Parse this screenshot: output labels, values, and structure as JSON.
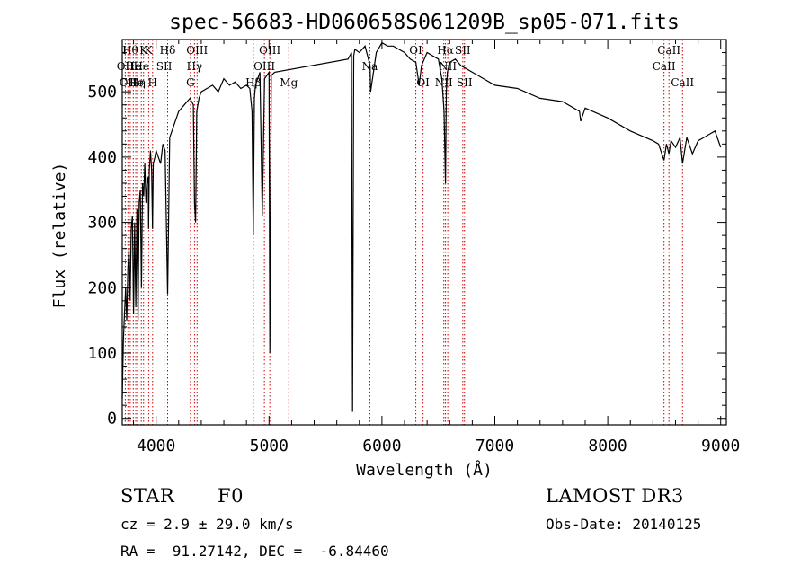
{
  "chart_data": {
    "type": "line",
    "title": "spec-56683-HD060658S061209B_sp05-071.fits",
    "xlabel": "Wavelength (Å)",
    "ylabel": "Flux (relative)",
    "xlim": [
      3700,
      9050
    ],
    "ylim": [
      -10,
      580
    ],
    "xticks": [
      4000,
      5000,
      6000,
      7000,
      8000,
      9000
    ],
    "yticks": [
      0,
      100,
      200,
      300,
      400,
      500
    ],
    "grid": false,
    "line_color": "#000000",
    "marker_color": "#cc0000",
    "series": [
      {
        "x": [
          3700,
          3710,
          3720,
          3730,
          3740,
          3750,
          3760,
          3770,
          3780,
          3790,
          3800,
          3810,
          3820,
          3830,
          3840,
          3850,
          3860,
          3870,
          3880,
          3890,
          3900,
          3910,
          3920,
          3930,
          3933,
          3940,
          3950,
          3960,
          3968,
          3975,
          3990,
          4000,
          4020,
          4040,
          4060,
          4080,
          4102,
          4120,
          4140,
          4160,
          4180,
          4200,
          4250,
          4300,
          4330,
          4340,
          4350,
          4360,
          4380,
          4400,
          4450,
          4500,
          4550,
          4600,
          4650,
          4700,
          4750,
          4800,
          4830,
          4850,
          4861,
          4870,
          4880,
          4900,
          4920,
          4940,
          4960,
          4980,
          5000,
          5007,
          5020,
          5050,
          5700,
          5730,
          5740,
          5750,
          5760,
          5800,
          5850,
          5895,
          5900,
          5950,
          6000,
          6050,
          6100,
          6150,
          6200,
          6250,
          6300,
          6330,
          6350,
          6400,
          6450,
          6500,
          6530,
          6550,
          6563,
          6570,
          6580,
          6600,
          6650,
          6700,
          6750,
          6800,
          6900,
          7000,
          7200,
          7400,
          7600,
          7750,
          7760,
          7800,
          8000,
          8200,
          8400,
          8450,
          8498,
          8520,
          8542,
          8560,
          8600,
          8640,
          8662,
          8700,
          8750,
          8800,
          8850,
          8900,
          8950,
          9000
        ],
        "y": [
          30,
          120,
          160,
          200,
          150,
          230,
          260,
          180,
          290,
          310,
          160,
          300,
          170,
          320,
          150,
          330,
          350,
          200,
          360,
          340,
          390,
          330,
          360,
          370,
          290,
          380,
          410,
          380,
          290,
          390,
          400,
          410,
          400,
          390,
          420,
          410,
          190,
          430,
          440,
          450,
          460,
          470,
          480,
          490,
          480,
          330,
          300,
          470,
          490,
          500,
          505,
          510,
          500,
          520,
          510,
          515,
          505,
          510,
          505,
          470,
          280,
          490,
          510,
          520,
          530,
          310,
          520,
          525,
          530,
          100,
          525,
          530,
          550,
          560,
          10,
          555,
          565,
          560,
          570,
          540,
          500,
          560,
          575,
          570,
          570,
          565,
          560,
          550,
          545,
          510,
          540,
          560,
          555,
          550,
          520,
          470,
          360,
          500,
          530,
          545,
          550,
          540,
          535,
          530,
          520,
          510,
          505,
          490,
          485,
          470,
          455,
          475,
          460,
          440,
          425,
          420,
          395,
          420,
          405,
          425,
          415,
          430,
          390,
          430,
          405,
          425,
          430,
          435,
          440,
          415
        ]
      }
    ],
    "spectral_lines": [
      {
        "wl": 3727,
        "label": "OII",
        "row": 2
      },
      {
        "wl": 3750,
        "label": "OII",
        "row": 3
      },
      {
        "wl": 3771,
        "label": "Hθ",
        "row": 1
      },
      {
        "wl": 3798,
        "label": "He",
        "row": 2
      },
      {
        "wl": 3820,
        "label": "He",
        "row": 3
      },
      {
        "wl": 3835,
        "label": "Hη",
        "row": 3
      },
      {
        "wl": 3869,
        "label": "He",
        "row": 2
      },
      {
        "wl": 3889,
        "label": "K",
        "row": 1
      },
      {
        "wl": 3934,
        "label": "K",
        "row": 1
      },
      {
        "wl": 3969,
        "label": "H",
        "row": 3
      },
      {
        "wl": 4071,
        "label": "SII",
        "row": 2
      },
      {
        "wl": 4102,
        "label": "Hδ",
        "row": 1
      },
      {
        "wl": 4304,
        "label": "G",
        "row": 3
      },
      {
        "wl": 4340,
        "label": "Hγ",
        "row": 2
      },
      {
        "wl": 4363,
        "label": "OIII",
        "row": 1
      },
      {
        "wl": 4861,
        "label": "Hβ",
        "row": 3
      },
      {
        "wl": 4959,
        "label": "OIII",
        "row": 2
      },
      {
        "wl": 5007,
        "label": "OIII",
        "row": 1
      },
      {
        "wl": 5175,
        "label": "Mg",
        "row": 3
      },
      {
        "wl": 5893,
        "label": "Na",
        "row": 2
      },
      {
        "wl": 6300,
        "label": "OI",
        "row": 1
      },
      {
        "wl": 6364,
        "label": "OI",
        "row": 3
      },
      {
        "wl": 6548,
        "label": "NII",
        "row": 3
      },
      {
        "wl": 6563,
        "label": "Hα",
        "row": 1
      },
      {
        "wl": 6583,
        "label": "NII",
        "row": 2
      },
      {
        "wl": 6716,
        "label": "SII",
        "row": 1
      },
      {
        "wl": 6731,
        "label": "SII",
        "row": 3
      },
      {
        "wl": 8498,
        "label": "CaII",
        "row": 2
      },
      {
        "wl": 8542,
        "label": "CaII",
        "row": 1
      },
      {
        "wl": 8662,
        "label": "CaII",
        "row": 3
      }
    ]
  },
  "info": {
    "object_class": "STAR",
    "subclass": "F0",
    "survey": "LAMOST DR3",
    "redshift": "cz = 2.9 ± 29.0 km/s",
    "obs_date": "Obs-Date: 20140125",
    "coordinates": "RA =  91.27142, DEC =  -6.84460"
  }
}
